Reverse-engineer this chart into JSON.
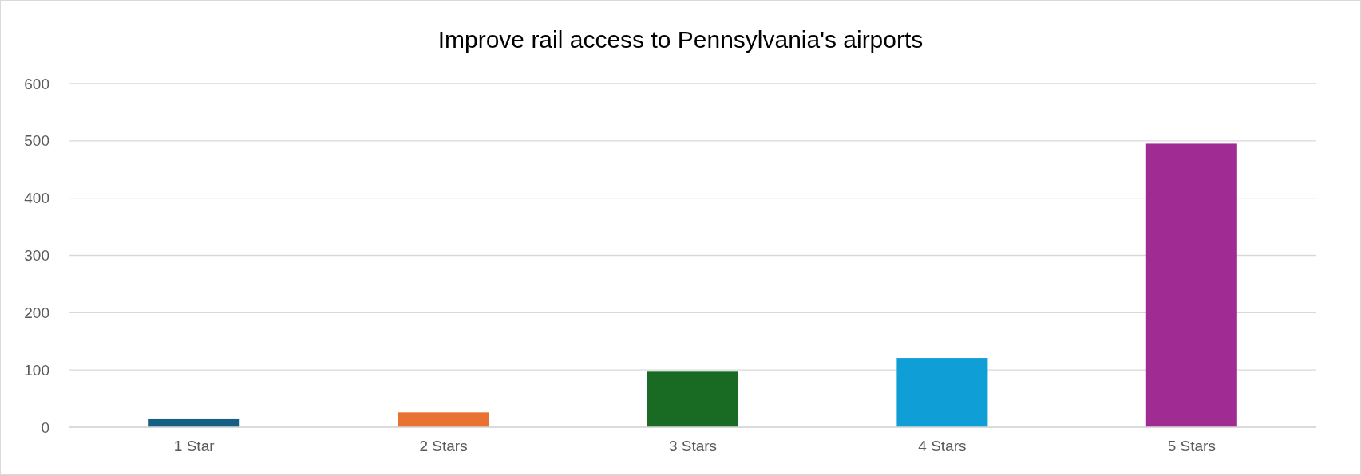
{
  "chart_data": {
    "type": "bar",
    "title": "Improve rail access to Pennsylvania's airports",
    "categories": [
      "1 Star",
      "2 Stars",
      "3 Stars",
      "4 Stars",
      "5 Stars"
    ],
    "values": [
      14,
      26,
      97,
      121,
      495
    ],
    "colors": [
      "#156082",
      "#e97132",
      "#196b24",
      "#0f9ed5",
      "#a02b93"
    ],
    "ylim": [
      0,
      600
    ],
    "yticks": [
      0,
      100,
      200,
      300,
      400,
      500,
      600
    ],
    "grid": "y"
  }
}
